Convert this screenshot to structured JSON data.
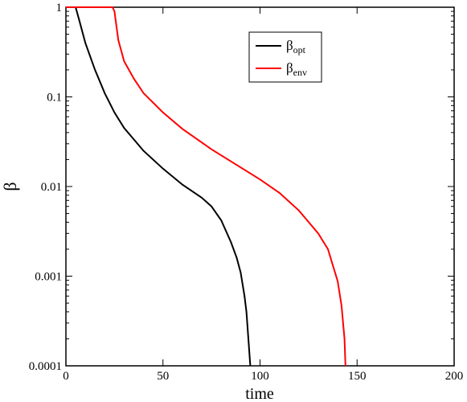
{
  "chart_data": {
    "type": "line",
    "xlabel": "time",
    "ylabel": "β",
    "xlim": [
      0,
      200
    ],
    "xticks": [
      0,
      50,
      100,
      150,
      200
    ],
    "ylim": [
      0.0001,
      1
    ],
    "yticks": [
      0.0001,
      0.001,
      0.01,
      0.1,
      1
    ],
    "yscale": "log",
    "legend": "top-center",
    "series": [
      {
        "name": "βopt",
        "color": "#000000",
        "x": [
          0,
          5,
          7,
          10,
          15,
          20,
          25,
          30,
          40,
          50,
          60,
          70,
          75,
          80,
          85,
          88,
          90,
          92,
          93,
          94,
          95
        ],
        "values": [
          1,
          1,
          0.7,
          0.4,
          0.2,
          0.11,
          0.067,
          0.045,
          0.025,
          0.0158,
          0.0105,
          0.0075,
          0.006,
          0.0042,
          0.0024,
          0.0016,
          0.0011,
          0.0006,
          0.0004,
          0.0002,
          0.0001
        ]
      },
      {
        "name": "βenv",
        "color": "#ff0000",
        "x": [
          0,
          24,
          25,
          27,
          30,
          35,
          40,
          50,
          60,
          75,
          100,
          110,
          120,
          130,
          135,
          140,
          142,
          143.5,
          144
        ],
        "values": [
          1,
          1,
          0.9,
          0.43,
          0.25,
          0.16,
          0.11,
          0.067,
          0.044,
          0.026,
          0.012,
          0.0085,
          0.0054,
          0.003,
          0.002,
          0.00088,
          0.00047,
          0.0002,
          0.0001
        ]
      }
    ]
  }
}
